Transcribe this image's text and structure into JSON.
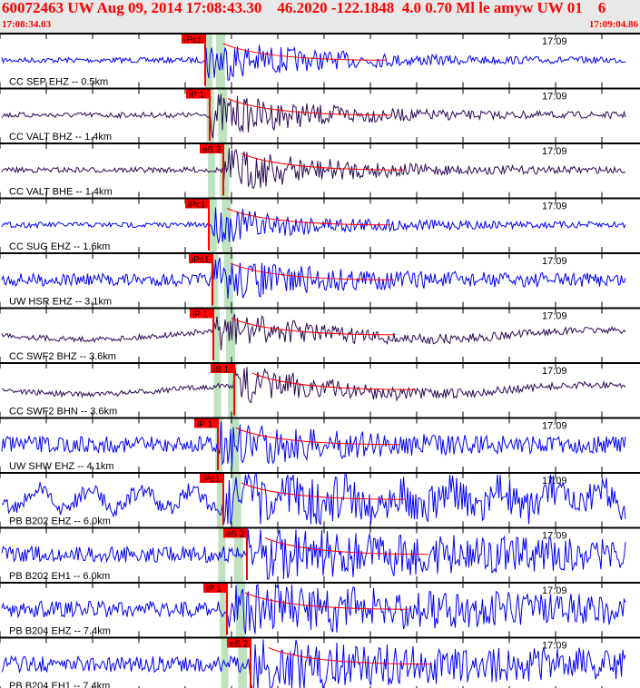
{
  "header": {
    "title": "60072463 UW Aug 09, 2014 17:08:43.30    46.2020 -122.1848  4.0 0.70 Ml le amyw UW 01    6",
    "start_time": "17:08:34.03",
    "end_time": "17:09:04.86"
  },
  "chart_data": {
    "type": "line",
    "time_tick_label": "17:09",
    "colors": {
      "blue": "#0000ff",
      "dark": "#2b0b55",
      "pick": "#ff0000",
      "band": "#bfe3bf"
    },
    "traces": [
      {
        "label": "CC SEP EHZ -- 0.5km",
        "pick": "iPc1",
        "color": "blue"
      },
      {
        "label": "CC VALT BHZ -- 1.4km",
        "pick": "iP 1",
        "color": "dark"
      },
      {
        "label": "CC VALT BHE -- 1.4km",
        "pick": "eS 2",
        "color": "dark"
      },
      {
        "label": "CC SUG EHZ -- 1.6km",
        "pick": "iPc1",
        "color": "blue"
      },
      {
        "label": "UW HSR EHZ -- 3.1km",
        "pick": "iPc1",
        "color": "blue"
      },
      {
        "label": "CC SWF2 BHZ -- 3.6km",
        "pick": "iP 1",
        "color": "dark"
      },
      {
        "label": "CC SWF2 BHN -- 3.6km",
        "pick": "iS 1",
        "color": "dark"
      },
      {
        "label": "UW SHW EHZ -- 4.1km",
        "pick": "iP 1",
        "color": "blue"
      },
      {
        "label": "PB B202 EHZ -- 6.0km",
        "pick": "iPc1",
        "color": "blue"
      },
      {
        "label": "PB B202 EH1 -- 6.0km",
        "pick": "eS 2",
        "color": "blue"
      },
      {
        "label": "PB B204 EHZ -- 7.4km",
        "pick": "iP 1",
        "color": "blue"
      },
      {
        "label": "PB B204 EH1 -- 7.4km",
        "pick": "eS 2",
        "color": "blue"
      }
    ]
  }
}
